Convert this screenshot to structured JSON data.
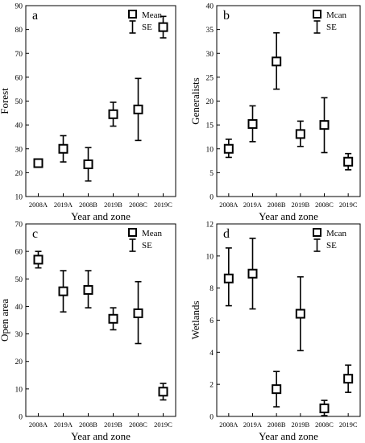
{
  "chart_data": [
    {
      "panel": "a",
      "type": "scatter",
      "ylabel": "Forest",
      "xlabel": "Year and zone",
      "categories": [
        "2008A",
        "2019A",
        "2008B",
        "2019B",
        "2008C",
        "2019C"
      ],
      "ylim": [
        10,
        90
      ],
      "yticks": [
        10,
        20,
        30,
        40,
        50,
        60,
        70,
        80,
        90
      ],
      "series": [
        {
          "name": "Mean",
          "values": [
            24,
            30,
            23.5,
            44.5,
            46.5,
            81
          ]
        },
        {
          "name": "SE",
          "lower": [
            22.5,
            24.5,
            16.5,
            39.5,
            33.5,
            76.5
          ],
          "upper": [
            25.5,
            35.5,
            30.5,
            49.5,
            59.5,
            85.5
          ]
        }
      ],
      "legend": {
        "mean_label": "Mean",
        "se_label": "SE",
        "position": "top-right"
      }
    },
    {
      "panel": "b",
      "type": "scatter",
      "ylabel": "Generalists",
      "xlabel": "Year and zone",
      "categories": [
        "2008A",
        "2019A",
        "2008B",
        "2019B",
        "2008C",
        "2019C"
      ],
      "ylim": [
        0,
        40
      ],
      "yticks": [
        0,
        5,
        10,
        15,
        20,
        25,
        30,
        35,
        40
      ],
      "series": [
        {
          "name": "Mcan",
          "values": [
            10,
            15.2,
            28.3,
            13.1,
            15,
            7.3
          ]
        },
        {
          "name": "SE",
          "lower": [
            8.2,
            11.5,
            22.5,
            10.5,
            9.2,
            5.6
          ],
          "upper": [
            12,
            19,
            34.3,
            15.8,
            20.7,
            9
          ]
        }
      ],
      "legend": {
        "mean_label": "Mcan",
        "se_label": "SE",
        "position": "top-right"
      }
    },
    {
      "panel": "c",
      "type": "scatter",
      "ylabel": "Open area",
      "xlabel": "Year and zone",
      "categories": [
        "2008A",
        "2019A",
        "2008B",
        "2019B",
        "2008C",
        "2019C"
      ],
      "ylim": [
        0,
        70
      ],
      "yticks": [
        0,
        10,
        20,
        30,
        40,
        50,
        60,
        70
      ],
      "series": [
        {
          "name": "Mean",
          "values": [
            57,
            45.5,
            46,
            35.5,
            37.5,
            9
          ]
        },
        {
          "name": "SE",
          "lower": [
            54,
            38,
            39.5,
            31.5,
            26.5,
            6
          ],
          "upper": [
            60,
            53,
            53,
            39.5,
            49,
            12
          ]
        }
      ],
      "legend": {
        "mean_label": "Mean",
        "se_label": "SE",
        "position": "top-right"
      }
    },
    {
      "panel": "d",
      "type": "scatter",
      "ylabel": "Wetlands",
      "xlabel": "Year and zone",
      "categories": [
        "2008A",
        "2019A",
        "2008B",
        "2019B",
        "2008C",
        "2019C"
      ],
      "ylim": [
        0,
        12
      ],
      "yticks": [
        0,
        2,
        4,
        6,
        8,
        10,
        12
      ],
      "series": [
        {
          "name": "Mcan",
          "values": [
            8.6,
            8.9,
            1.7,
            6.4,
            0.5,
            2.35
          ]
        },
        {
          "name": "SE",
          "lower": [
            6.9,
            6.7,
            0.6,
            4.1,
            0.05,
            1.5
          ],
          "upper": [
            10.5,
            11.1,
            2.8,
            8.7,
            1,
            3.2
          ]
        }
      ],
      "legend": {
        "mean_label": "Mcan",
        "se_label": "SE",
        "position": "top-right"
      }
    }
  ]
}
